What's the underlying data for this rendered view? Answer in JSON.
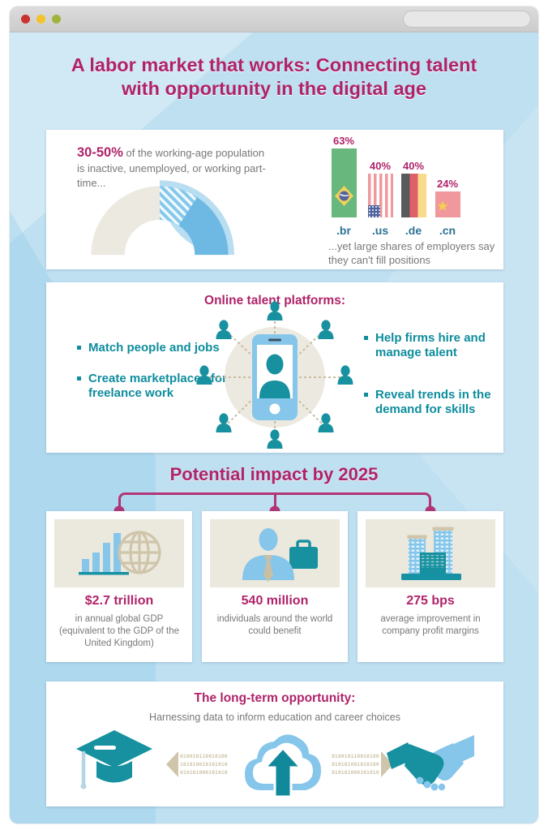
{
  "window": {
    "traffic_lights": [
      "close",
      "minimize",
      "zoom"
    ],
    "search": {
      "value": "",
      "placeholder": ""
    }
  },
  "title": "A labor market that works: Connecting talent with opportunity in the digital age",
  "inactivity": {
    "stat": "30-50%",
    "text": " of the working-age population is inactive, unemployed, or working part-time..."
  },
  "chart_data": [
    {
      "type": "donut",
      "shape": "semicircle-gauge",
      "description": "Share of working-age population inactive, unemployed or working part-time",
      "value_label": "30-50%",
      "segments": [
        {
          "label": "lower bound (solid blue)",
          "value": 30
        },
        {
          "label": "upper bound range (hatched blue)",
          "value": 20
        },
        {
          "label": "remainder (beige)",
          "value": 50
        }
      ]
    },
    {
      "type": "bar",
      "title": "Employers who say they can't fill positions",
      "categories": [
        ".br",
        ".us",
        ".de",
        ".cn"
      ],
      "values": [
        63,
        40,
        40,
        24
      ],
      "value_labels": [
        "63%",
        "40%",
        "40%",
        "24%"
      ],
      "bar_style": "country flags (Brazil, United States, Germany, China)",
      "ylim": [
        0,
        70
      ],
      "caption": "...yet large shares of employers say they can't fill positions"
    }
  ],
  "platforms": {
    "title": "Online talent platforms:",
    "bullets_left": [
      "Match people and jobs",
      "Create marketplaces for freelance work"
    ],
    "bullets_right": [
      "Help firms hire and manage talent",
      "Reveal trends in the demand for skills"
    ]
  },
  "impact": {
    "title": "Potential impact by 2025",
    "cards": [
      {
        "icon": "bar-chart-globe-icon",
        "stat": "$2.7 trillion",
        "desc": "in annual global GDP (equivalent to the GDP of the United Kingdom)"
      },
      {
        "icon": "businessperson-briefcase-icon",
        "stat": "540 million",
        "desc": "individuals around the world could benefit"
      },
      {
        "icon": "office-buildings-icon",
        "stat": "275 bps",
        "desc": "average improvement in company profit margins"
      }
    ]
  },
  "longterm": {
    "title": "The long-term opportunity:",
    "subtitle": "Harnessing data to inform education and career choices",
    "binary_left": [
      "010010110010100",
      "101010010101010",
      "010101000101010"
    ],
    "binary_right": [
      "010010110010100",
      "010101001010100",
      "010101000101010"
    ]
  },
  "colors": {
    "magenta": "#b02369",
    "teal": "#12899b",
    "teal_text": "#0e8d9d",
    "light_blue": "#85c6ea",
    "beige": "#cfc5aa",
    "panel_beige": "#ebe8dd",
    "gray_text": "#77787b",
    "bg_blue": "#bfe0f1",
    "bar_label_blue": "#2d7394"
  }
}
